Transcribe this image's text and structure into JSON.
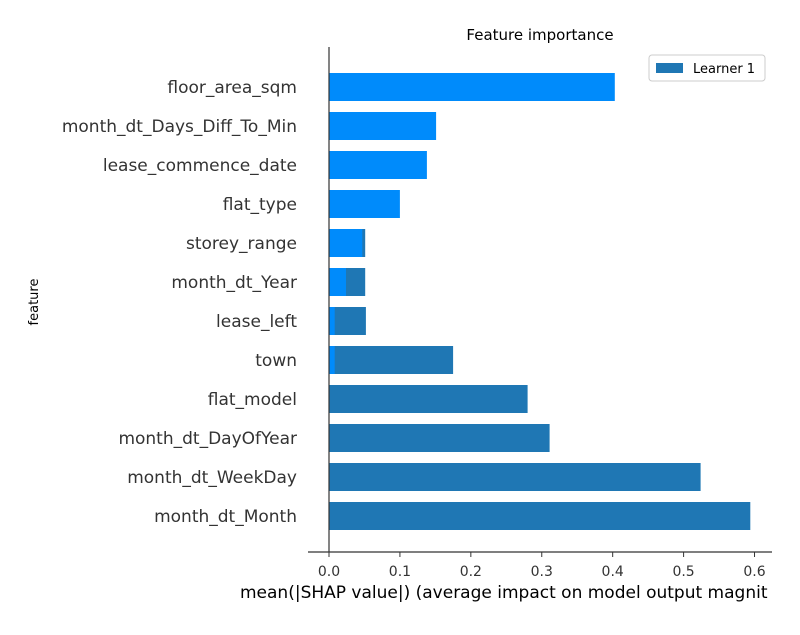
{
  "chart_data": {
    "type": "bar",
    "orientation": "horizontal",
    "title": "Feature importance",
    "xlabel": "mean(|SHAP value|) (average impact on model output magnit",
    "ylabel": "feature",
    "xlim": [
      -0.03,
      0.62
    ],
    "xticks": [
      "0.0",
      "0.1",
      "0.2",
      "0.3",
      "0.4",
      "0.5",
      "0.6"
    ],
    "xtick_values": [
      0,
      0.1,
      0.2,
      0.3,
      0.4,
      0.5,
      0.6
    ],
    "grid": false,
    "legend_position": "top-right",
    "categories": [
      "floor_area_sqm",
      "month_dt_Days_Diff_To_Min",
      "lease_commence_date",
      "flat_type",
      "storey_range",
      "month_dt_Year",
      "lease_left",
      "town",
      "flat_model",
      "month_dt_DayOfYear",
      "month_dt_WeekDay",
      "month_dt_Month"
    ],
    "series": [
      {
        "name": "Learner 1",
        "color": "#1f77b4",
        "values": [
          0.0,
          0.0,
          0.0,
          0.0,
          0.051,
          0.051,
          0.052,
          0.175,
          0.28,
          0.311,
          0.524,
          0.594
        ]
      },
      {
        "color": "#008bfb",
        "values": [
          0.403,
          0.151,
          0.138,
          0.1,
          0.047,
          0.024,
          0.008,
          0.008,
          0.0,
          0.0,
          0.0,
          0.0
        ]
      }
    ]
  }
}
